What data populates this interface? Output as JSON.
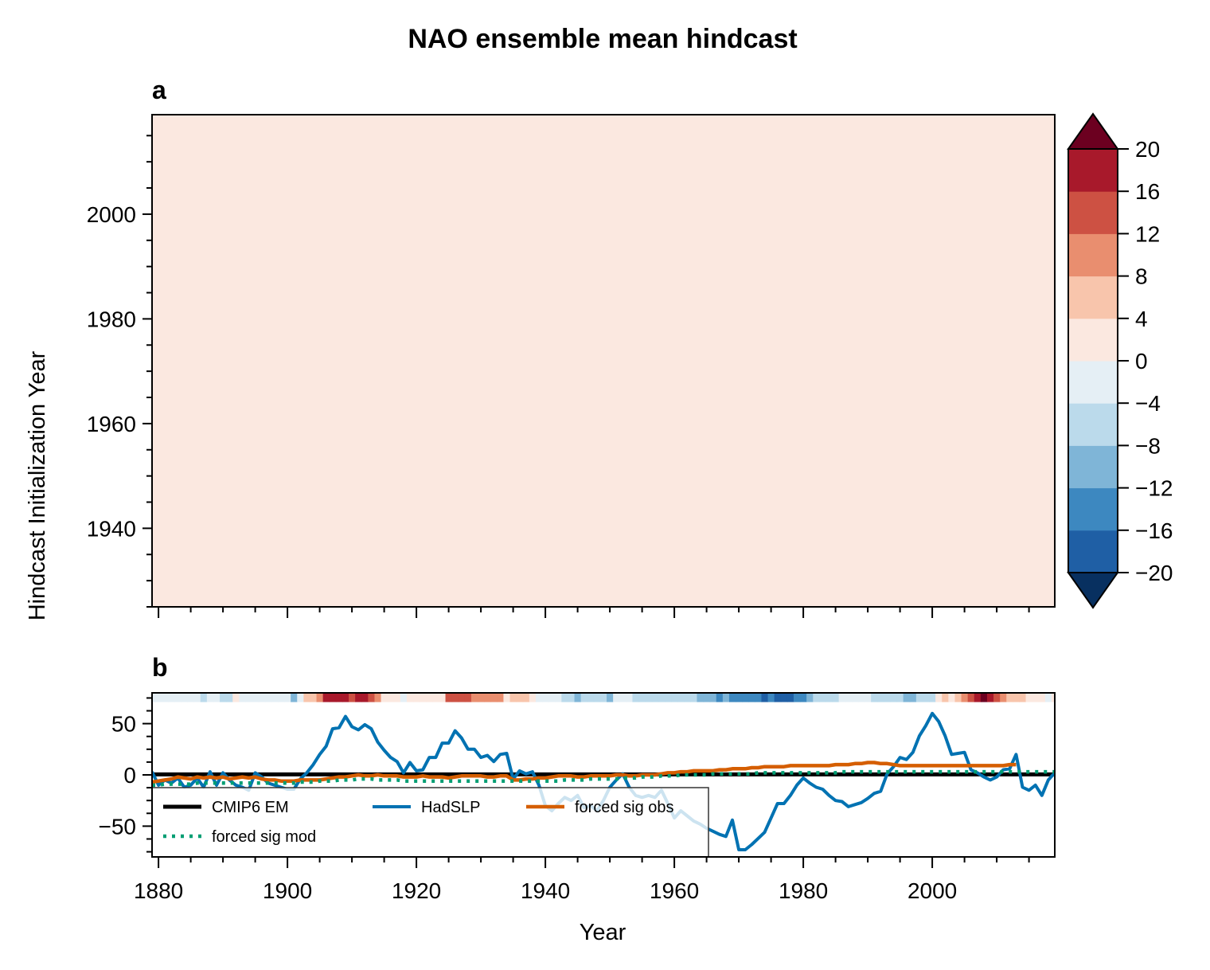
{
  "chart_data": [
    {
      "panel": "a",
      "type": "heatmap",
      "title": "NAO ensemble mean hindcast",
      "panel_label": "a",
      "xlabel": "",
      "ylabel": "Hindcast Initialization Year",
      "xlim": [
        1879,
        2019
      ],
      "ylim": [
        1925,
        2019
      ],
      "yticks": [
        1940,
        1960,
        1980,
        2000
      ],
      "ytick_labels": [
        "1940",
        "1960",
        "1980",
        "2000"
      ],
      "xticks": [
        1880,
        1900,
        1920,
        1940,
        1960,
        1980,
        2000
      ],
      "xtick_labels_visible": false,
      "field_uniform_value_class": "0 to 4",
      "field_color": "#fbe8e0",
      "colorbar": {
        "levels": [
          -20,
          -16,
          -12,
          -8,
          -4,
          0,
          4,
          8,
          12,
          16,
          20
        ],
        "tick_labels": [
          "−20",
          "−16",
          "−12",
          "−8",
          "−4",
          "0",
          "4",
          "8",
          "12",
          "16",
          "20"
        ],
        "colors": [
          "#1f5fa5",
          "#3d88c0",
          "#7fb5d7",
          "#bbdaeb",
          "#e5eff5",
          "#fbe8e0",
          "#f8c5ac",
          "#e98e6f",
          "#cd5143",
          "#a8192b"
        ],
        "extend_low_color": "#083060",
        "extend_high_color": "#6c0020",
        "extend": "both"
      }
    },
    {
      "panel": "b",
      "type": "line",
      "panel_label": "b",
      "xlabel": "Year",
      "ylabel": "",
      "xlim": [
        1879,
        2019
      ],
      "ylim": [
        -80,
        80
      ],
      "xticks": [
        1880,
        1900,
        1920,
        1940,
        1960,
        1980,
        2000
      ],
      "xtick_labels": [
        "1880",
        "1900",
        "1920",
        "1940",
        "1960",
        "1980",
        "2000"
      ],
      "yticks": [
        -50,
        0,
        50
      ],
      "ytick_labels": [
        "−50",
        "0",
        "50"
      ],
      "legend": {
        "placement": "lower-left",
        "columns": 3,
        "entries": [
          "CMIP6 EM",
          "HadSLP",
          "forced sig obs",
          "forced sig mod"
        ]
      },
      "series": [
        {
          "name": "CMIP6 EM",
          "color": "#000000",
          "style": "solid",
          "x": [
            1879,
            2019
          ],
          "values": [
            0.5,
            0.5
          ]
        },
        {
          "name": "HadSLP",
          "color": "#0072b2",
          "style": "solid",
          "x_start": 1879,
          "values": [
            3,
            -10,
            -5,
            -8,
            -3,
            -12,
            -10,
            -3,
            -12,
            3,
            -10,
            2,
            -5,
            -10,
            -12,
            -15,
            2,
            -2,
            -8,
            -10,
            -12,
            -14,
            -14,
            -4,
            2,
            10,
            20,
            28,
            45,
            46,
            57,
            47,
            44,
            49,
            45,
            32,
            24,
            17,
            13,
            2,
            12,
            4,
            5,
            17,
            17,
            31,
            31,
            43,
            36,
            25,
            25,
            17,
            19,
            13,
            20,
            21,
            -4,
            4,
            1,
            3,
            -10,
            -30,
            -35,
            -28,
            -22,
            -25,
            -20,
            -32,
            -30,
            -35,
            -25,
            -12,
            -5,
            1,
            -12,
            -20,
            -22,
            -20,
            -22,
            -15,
            -28,
            -42,
            -35,
            -40,
            -45,
            -48,
            -52,
            -55,
            -58,
            -60,
            -44,
            -73,
            -73,
            -68,
            -62,
            -56,
            -42,
            -28,
            -28,
            -20,
            -10,
            -3,
            -8,
            -12,
            -14,
            -20,
            -25,
            -26,
            -31,
            -29,
            -27,
            -23,
            -18,
            -16,
            1,
            8,
            17,
            15,
            22,
            38,
            48,
            60,
            52,
            38,
            20,
            21,
            22,
            5,
            2,
            -2,
            -5,
            -2,
            5,
            6,
            20,
            -12,
            -15,
            -10,
            -20,
            -5,
            2,
            3,
            5,
            15,
            40,
            55,
            45
          ]
        },
        {
          "name": "forced sig obs",
          "color": "#d55e00",
          "style": "solid",
          "x_start": 1879,
          "values": [
            -7,
            -6,
            -5,
            -4,
            -2,
            -3,
            -4,
            -2,
            -3,
            -2,
            -3,
            -2,
            -4,
            -3,
            -2,
            -3,
            -2,
            -4,
            -5,
            -5,
            -6,
            -6,
            -6,
            -5,
            -5,
            -5,
            -5,
            -4,
            -3,
            -2,
            -2,
            -1,
            0,
            -1,
            -1,
            0,
            -1,
            -1,
            -1,
            -2,
            -2,
            -2,
            -1,
            -2,
            -2,
            -2,
            -3,
            -2,
            -1,
            -1,
            -1,
            -1,
            -2,
            -2,
            -1,
            -1,
            -5,
            -5,
            -4,
            -4,
            -3,
            -3,
            -2,
            -1,
            -1,
            -1,
            -2,
            -2,
            -1,
            -1,
            -1,
            -1,
            0,
            0,
            -1,
            -1,
            0,
            0,
            0,
            1,
            2,
            2,
            3,
            3,
            4,
            4,
            4,
            4,
            5,
            5,
            6,
            6,
            6,
            7,
            7,
            8,
            8,
            8,
            8,
            9,
            9,
            9,
            9,
            9,
            9,
            9,
            10,
            10,
            10,
            11,
            11,
            12,
            12,
            11,
            11,
            10,
            9,
            9,
            9,
            9,
            9,
            9,
            9,
            9,
            9,
            9,
            9,
            9,
            9,
            9,
            9,
            9,
            9,
            10,
            10
          ]
        },
        {
          "name": "forced sig mod",
          "color": "#009e73",
          "style": "dotted",
          "x_start": 1879,
          "values": [
            -10,
            -10,
            -9,
            -9,
            -9,
            -9,
            -9,
            -8,
            -8,
            -8,
            -8,
            -8,
            -8,
            -8,
            -8,
            -8,
            -8,
            -8,
            -8,
            -8,
            -8,
            -8,
            -8,
            -7,
            -7,
            -7,
            -6,
            -6,
            -6,
            -5,
            -5,
            -5,
            -4,
            -4,
            -4,
            -5,
            -5,
            -5,
            -5,
            -6,
            -6,
            -6,
            -6,
            -6,
            -6,
            -6,
            -6,
            -6,
            -6,
            -6,
            -6,
            -6,
            -6,
            -6,
            -6,
            -6,
            -6,
            -6,
            -6,
            -6,
            -6,
            -6,
            -6,
            -6,
            -5,
            -5,
            -5,
            -5,
            -4,
            -4,
            -4,
            -4,
            -4,
            -3,
            -3,
            -3,
            -2,
            -2,
            -2,
            -1,
            -1,
            -1,
            0,
            0,
            0,
            0,
            0,
            1,
            1,
            1,
            1,
            1,
            1,
            1,
            2,
            2,
            2,
            2,
            2,
            2,
            2,
            2,
            2,
            2,
            2,
            2,
            2,
            3,
            3,
            3,
            3,
            3,
            3,
            3,
            3,
            3,
            3,
            3,
            3,
            3,
            3,
            3,
            3,
            3,
            3,
            3,
            3,
            3,
            3,
            3,
            3,
            3,
            3,
            3,
            3,
            3,
            3,
            3,
            3,
            3,
            3,
            3
          ]
        }
      ],
      "color_strip": {
        "description": "Year-by-year colored strip along top of panel b using colorbar classes (values approximate)",
        "x_start": 1879,
        "values": [
          -2,
          -2,
          -2,
          -2,
          -2,
          -2,
          -2,
          -2,
          -6,
          -2,
          -2,
          -6,
          -6,
          2,
          -2,
          -2,
          -2,
          -2,
          -2,
          -2,
          -2,
          -2,
          -10,
          -2,
          6,
          6,
          10,
          18,
          18,
          18,
          18,
          14,
          18,
          18,
          14,
          10,
          2,
          2,
          2,
          -2,
          2,
          2,
          2,
          2,
          2,
          2,
          14,
          14,
          14,
          14,
          10,
          10,
          10,
          10,
          10,
          2,
          6,
          6,
          6,
          2,
          -2,
          -2,
          -2,
          -2,
          -6,
          -6,
          -10,
          -6,
          -6,
          -6,
          -6,
          -10,
          -2,
          -2,
          -2,
          -6,
          -6,
          -6,
          -6,
          -6,
          -6,
          -6,
          -6,
          -6,
          -6,
          -10,
          -10,
          -10,
          -14,
          -10,
          -14,
          -14,
          -14,
          -14,
          -14,
          -18,
          -14,
          -18,
          -18,
          -18,
          -14,
          -14,
          -10,
          -6,
          -6,
          -6,
          -6,
          -2,
          -2,
          -2,
          -2,
          -2,
          -6,
          -6,
          -6,
          -6,
          -6,
          -10,
          -10,
          -6,
          -6,
          -6,
          2,
          6,
          2,
          6,
          10,
          14,
          18,
          22,
          18,
          14,
          10,
          6,
          6,
          6,
          2,
          2,
          2,
          -2,
          2,
          2,
          6,
          -2,
          -6,
          -2,
          -6,
          2,
          2,
          2,
          2,
          14,
          18
        ]
      }
    }
  ],
  "figure": {
    "title": "NAO ensemble mean hindcast"
  }
}
